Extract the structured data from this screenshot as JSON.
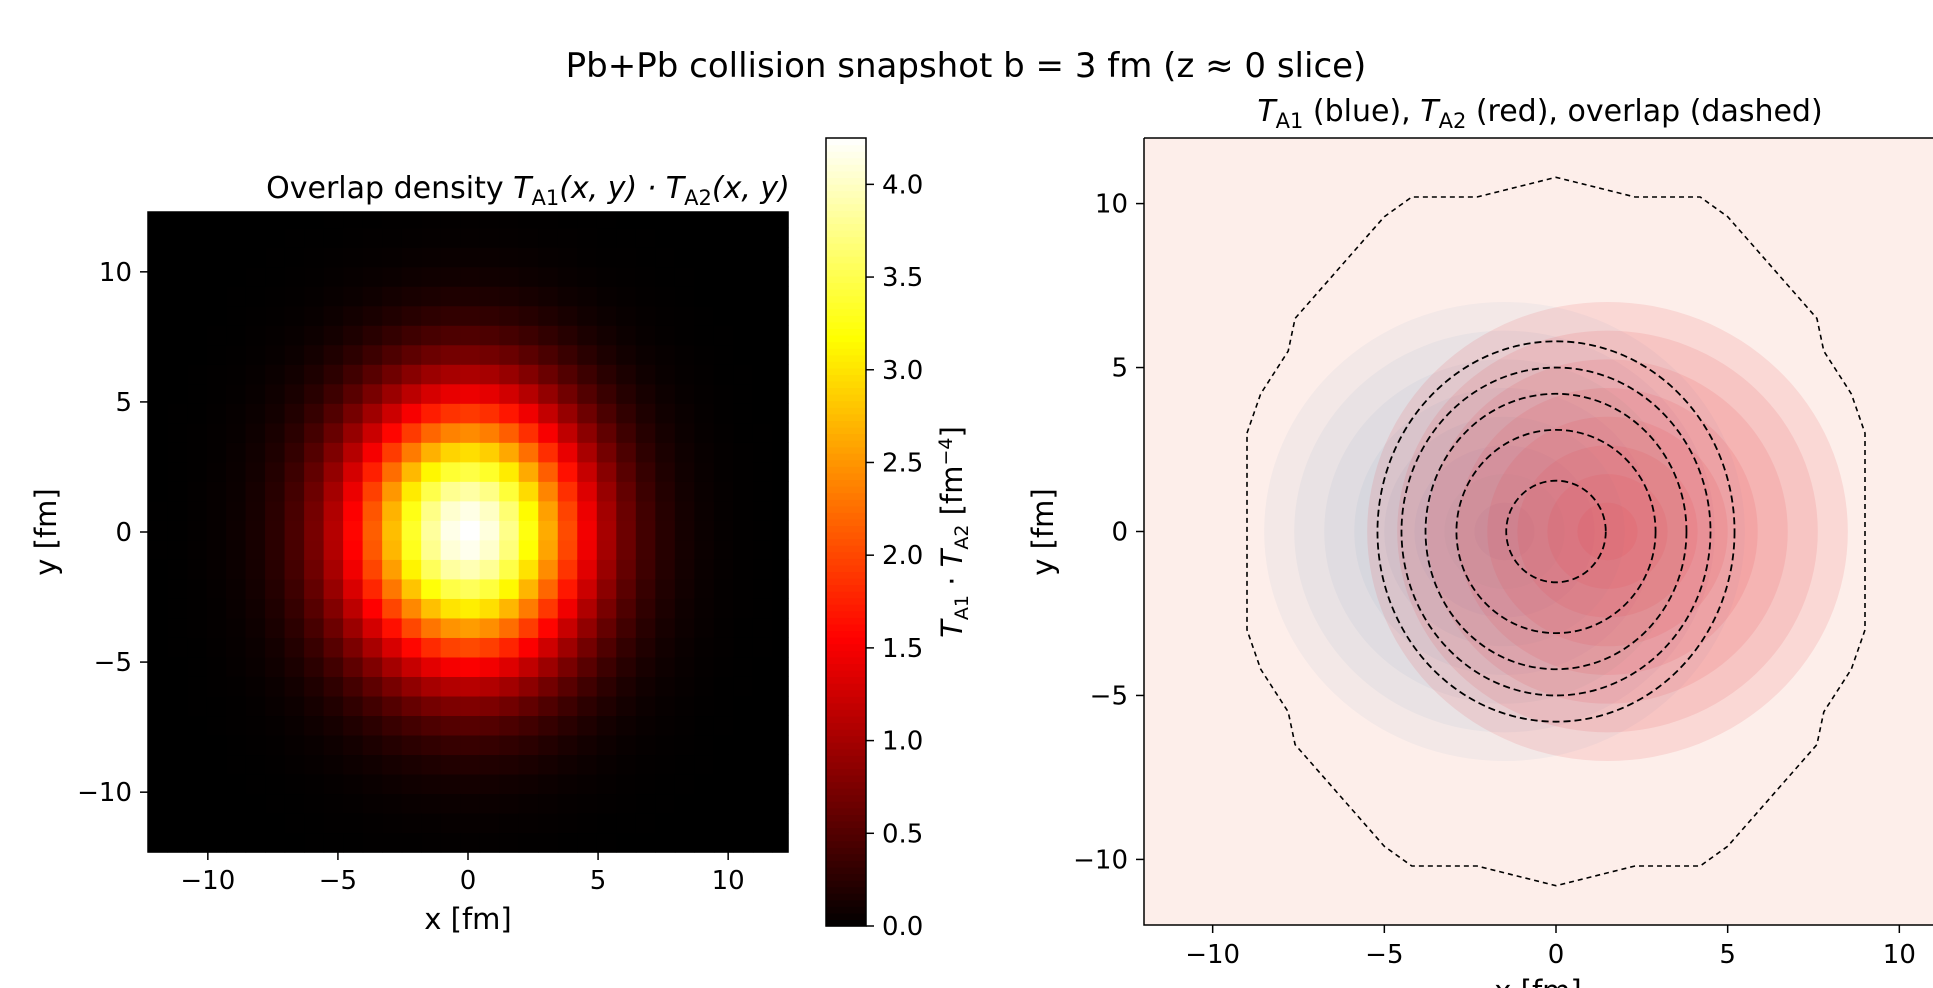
{
  "figure": {
    "suptitle": "Pb+Pb collision snapshot  b = 3 fm  (z ≈ 0 slice)"
  },
  "colors": {
    "target_blue": "#5b86b8",
    "target_red": "#e8424a",
    "dashed_contour": "#000000",
    "background_right": "#fdeeea"
  },
  "chart_data": [
    {
      "type": "heatmap",
      "title_text": "Overlap density  ",
      "title_math": "T_A1(x, y) · T_A2(x, y)",
      "xlabel": "x [fm]",
      "ylabel": "y [fm]",
      "xlim": [
        -12.3,
        12.3
      ],
      "ylim": [
        -12.3,
        12.3
      ],
      "xticks": [
        -10,
        -5,
        0,
        5,
        10
      ],
      "yticks": [
        -10,
        -5,
        0,
        5,
        10
      ],
      "tick_labels": [
        "−10",
        "−5",
        "0",
        "5",
        "10"
      ],
      "grid_step_fm": 0.75,
      "colormap": "hot",
      "peak_value": 4.25,
      "peak_center": [
        0,
        0
      ],
      "sigma_x": 3.3,
      "sigma_y": 3.8,
      "grid": false,
      "colorbar": {
        "label": "T_A1 · T_A2 [fm^-4]",
        "range": [
          0,
          4.25
        ],
        "ticks": [
          0.0,
          0.5,
          1.0,
          1.5,
          2.0,
          2.5,
          3.0,
          3.5,
          4.0
        ],
        "tick_labels": [
          "0.0",
          "0.5",
          "1.0",
          "1.5",
          "2.0",
          "2.5",
          "3.0",
          "3.5",
          "4.0"
        ]
      }
    },
    {
      "type": "contour",
      "title_parts": [
        "T_A1",
        " (blue), ",
        "T_A2",
        " (red), overlap (dashed)"
      ],
      "ylabel": "y [fm]",
      "xlabel": "x [fm]",
      "xlim": [
        -12,
        12
      ],
      "ylim": [
        -12,
        12
      ],
      "xticks": [
        -10,
        -5,
        0,
        5,
        10
      ],
      "yticks": [
        -10,
        -5,
        0,
        5,
        10
      ],
      "tick_labels": [
        "−10",
        "−5",
        "0",
        "5",
        "10"
      ],
      "series": [
        {
          "name": "T_A1 (blue)",
          "center": [
            -1.5,
            0
          ],
          "radius": 7.0,
          "levels": 8
        },
        {
          "name": "T_A2 (red)",
          "center": [
            1.5,
            0
          ],
          "radius": 7.0,
          "levels": 8
        }
      ],
      "overlap_contours": [
        {
          "center": [
            0,
            0
          ],
          "rx": 1.45,
          "ry": 1.55
        },
        {
          "center": [
            0,
            0
          ],
          "rx": 2.9,
          "ry": 3.1
        },
        {
          "center": [
            0,
            0
          ],
          "rx": 3.8,
          "ry": 4.2
        },
        {
          "center": [
            0,
            0
          ],
          "rx": 4.5,
          "ry": 5.0
        },
        {
          "center": [
            0,
            0
          ],
          "rx": 5.2,
          "ry": 5.8
        }
      ],
      "outer_contour": [
        [
          -9.0,
          3.0
        ],
        [
          -8.6,
          4.2
        ],
        [
          -7.8,
          5.5
        ],
        [
          -7.6,
          6.5
        ],
        [
          -5.0,
          9.6
        ],
        [
          -4.2,
          10.2
        ],
        [
          -2.3,
          10.2
        ],
        [
          0,
          10.8
        ],
        [
          2.3,
          10.2
        ],
        [
          4.2,
          10.2
        ],
        [
          5.0,
          9.6
        ],
        [
          7.6,
          6.5
        ],
        [
          7.8,
          5.5
        ],
        [
          8.6,
          4.2
        ],
        [
          9.0,
          3.0
        ],
        [
          9.0,
          -3.0
        ],
        [
          8.6,
          -4.2
        ],
        [
          7.8,
          -5.5
        ],
        [
          7.6,
          -6.5
        ],
        [
          5.0,
          -9.6
        ],
        [
          4.2,
          -10.2
        ],
        [
          2.3,
          -10.2
        ],
        [
          0,
          -10.8
        ],
        [
          -2.3,
          -10.2
        ],
        [
          -4.2,
          -10.2
        ],
        [
          -5.0,
          -9.6
        ],
        [
          -7.6,
          -6.5
        ],
        [
          -7.8,
          -5.5
        ],
        [
          -8.6,
          -4.2
        ],
        [
          -9.0,
          -3.0
        ]
      ],
      "grid": false
    }
  ]
}
